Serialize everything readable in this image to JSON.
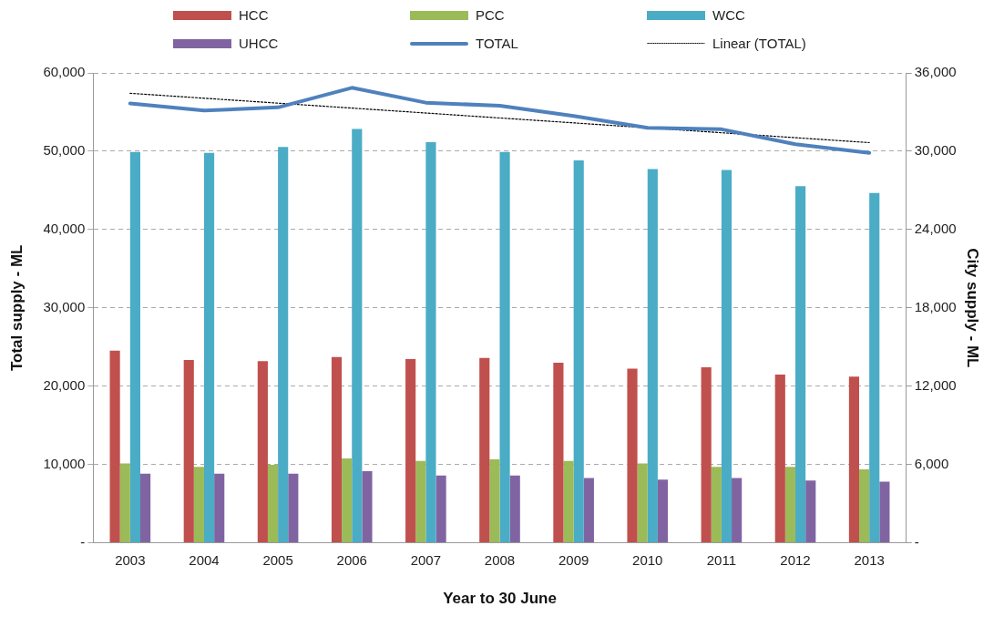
{
  "chart_data": {
    "type": "bar",
    "xlabel": "Year to 30 June",
    "ylabel": "Total supply - ML",
    "y2label": "City supply - ML",
    "categories": [
      "2003",
      "2004",
      "2005",
      "2006",
      "2007",
      "2008",
      "2009",
      "2010",
      "2011",
      "2012",
      "2013"
    ],
    "series": [
      {
        "name": "HCC",
        "color": "#c0504d",
        "axis": "y2",
        "values": [
          14720,
          14010,
          13920,
          14240,
          14070,
          14170,
          13790,
          13340,
          13450,
          12890,
          12730
        ]
      },
      {
        "name": "PCC",
        "color": "#9bbb59",
        "axis": "y2",
        "values": [
          6090,
          5820,
          5980,
          6460,
          6280,
          6390,
          6280,
          6090,
          5820,
          5820,
          5630
        ]
      },
      {
        "name": "WCC",
        "color": "#4bacc6",
        "axis": "y2",
        "values": [
          29950,
          29880,
          30320,
          31700,
          30690,
          29950,
          29300,
          28640,
          28570,
          27330,
          26800
        ]
      },
      {
        "name": "UHCC",
        "color": "#8064a2",
        "axis": "y2",
        "values": [
          5290,
          5290,
          5290,
          5480,
          5150,
          5150,
          4960,
          4840,
          4960,
          4770,
          4690
        ]
      },
      {
        "name": "TOTAL",
        "type": "line",
        "color": "#4f81bd",
        "line_style": "solid",
        "values": [
          56100,
          55200,
          55600,
          58100,
          56200,
          55800,
          54500,
          53000,
          52800,
          50900,
          49800
        ]
      },
      {
        "name": "Linear (TOTAL)",
        "type": "line",
        "color": "#000000",
        "line_style": "dotted",
        "values": [
          57400,
          null,
          null,
          null,
          null,
          null,
          null,
          null,
          null,
          null,
          51100
        ]
      }
    ],
    "ylim": [
      0,
      60000
    ],
    "yticks": [
      {
        "value": 0,
        "label": "-"
      },
      {
        "value": 10000,
        "label": "10,000"
      },
      {
        "value": 20000,
        "label": "20,000"
      },
      {
        "value": 30000,
        "label": "30,000"
      },
      {
        "value": 40000,
        "label": "40,000"
      },
      {
        "value": 50000,
        "label": "50,000"
      },
      {
        "value": 60000,
        "label": "60,000"
      }
    ],
    "y2lim": [
      0,
      36000
    ],
    "y2ticks": [
      {
        "value": 0,
        "label": "-"
      },
      {
        "value": 6000,
        "label": "6,000"
      },
      {
        "value": 12000,
        "label": "12,000"
      },
      {
        "value": 18000,
        "label": "18,000"
      },
      {
        "value": 24000,
        "label": "24,000"
      },
      {
        "value": 30000,
        "label": "30,000"
      },
      {
        "value": 36000,
        "label": "36,000"
      }
    ],
    "grid": "y",
    "legend": "top",
    "marker": "none"
  }
}
